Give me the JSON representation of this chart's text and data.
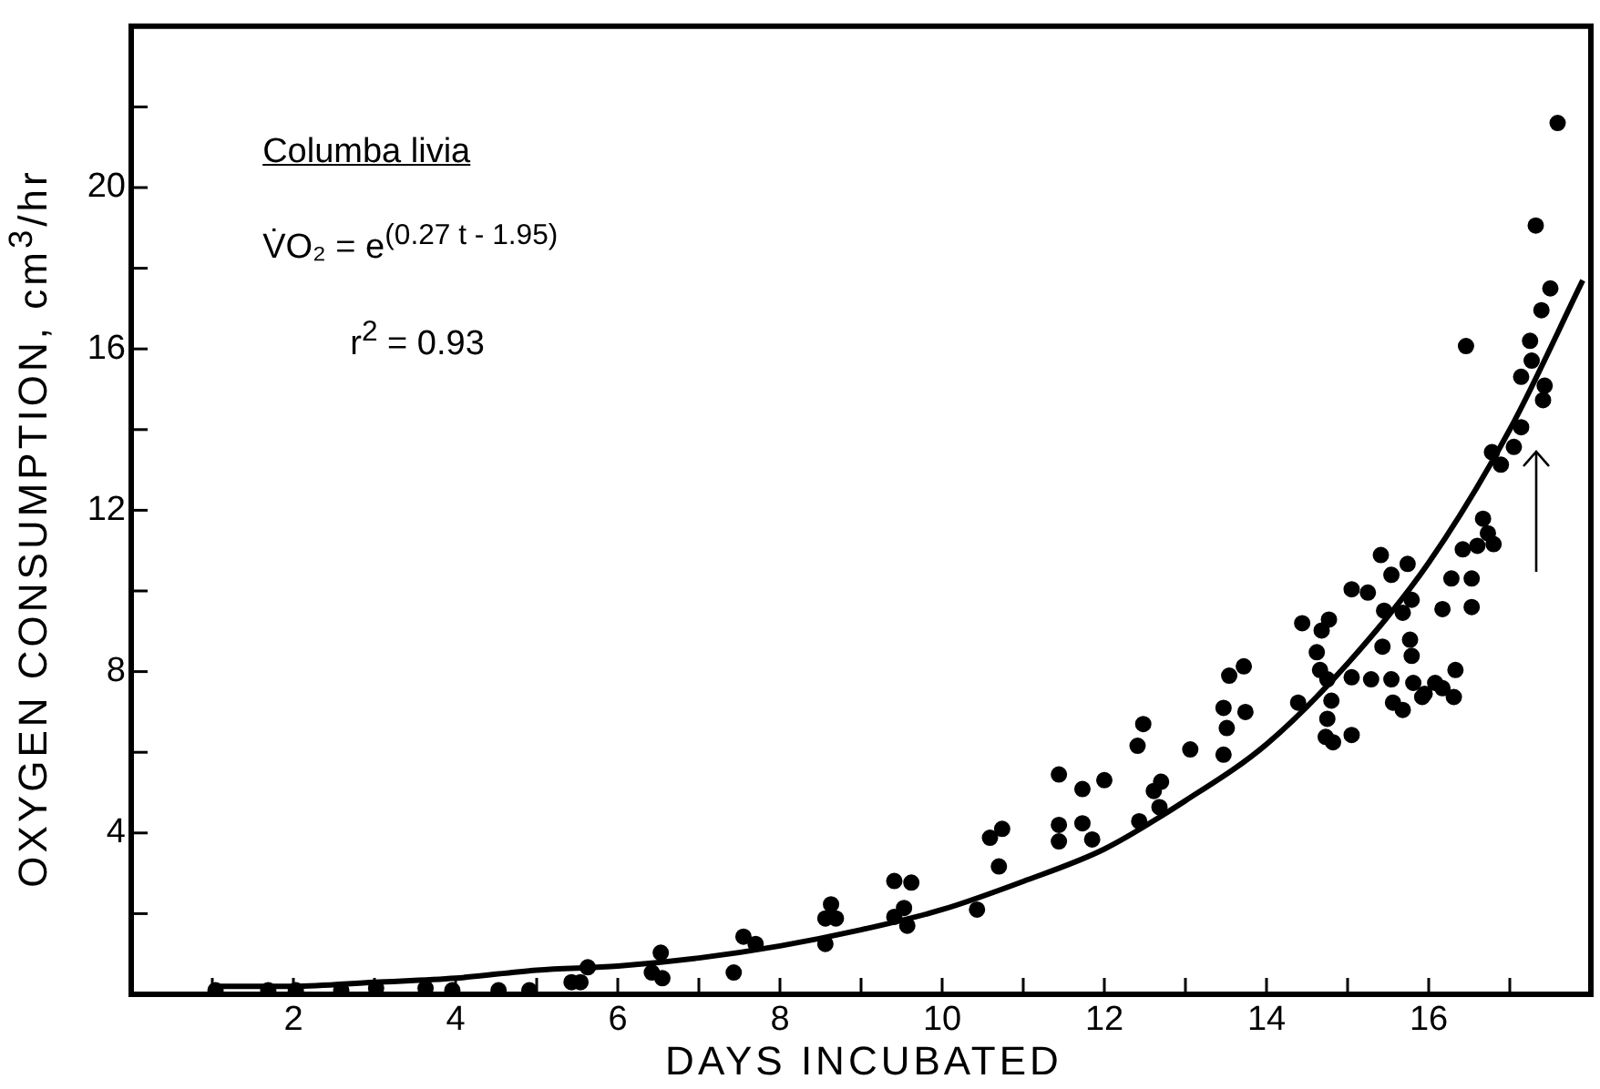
{
  "chart_data": {
    "type": "scatter",
    "xlabel": "DAYS  INCUBATED",
    "ylabel": "OXYGEN  CONSUMPTION, cm$^{3}$/hr",
    "annotations": [
      "Columba  livia",
      "V̇O₂ = e$^{(0.27 t - 1.95)}$",
      "r$^{2}$ = 0.93"
    ],
    "xlim": [
      0,
      18
    ],
    "ylim": [
      0,
      24
    ],
    "xticks": [
      {
        "value": 1,
        "label": null
      },
      2,
      {
        "value": 3,
        "label": null
      },
      4,
      {
        "value": 5,
        "label": null
      },
      6,
      {
        "value": 7,
        "label": null
      },
      8,
      {
        "value": 9,
        "label": null
      },
      10,
      {
        "value": 11,
        "label": null
      },
      12,
      {
        "value": 13,
        "label": null
      },
      14,
      {
        "value": 15,
        "label": null
      },
      16,
      {
        "value": 17,
        "label": null
      }
    ],
    "yticks": [
      {
        "value": 2,
        "label": null
      },
      4,
      {
        "value": 6,
        "label": null
      },
      8,
      {
        "value": 10,
        "label": null
      },
      12,
      {
        "value": 14,
        "label": null
      },
      16,
      {
        "value": 18,
        "label": null
      },
      20,
      {
        "value": 22,
        "label": null
      }
    ],
    "grid": false,
    "legend": false,
    "series": [
      {
        "marker": "circle",
        "color": "#000000",
        "x": [
          1.04,
          1.69,
          2.03,
          2.59,
          3.02,
          3.63,
          3.96,
          4.53,
          4.91,
          5.43,
          5.54,
          5.63,
          6.53,
          6.42,
          6.55,
          7.55,
          7.7,
          7.43,
          8.63,
          8.56,
          8.69,
          8.56,
          9.41,
          9.62,
          9.41,
          9.53,
          9.57,
          10.43,
          10.59,
          10.74,
          10.7,
          11.44,
          11.44,
          11.44,
          11.73,
          11.73,
          11.85,
          12.0,
          12.48,
          12.41,
          12.61,
          12.7,
          12.43,
          12.68,
          13.06,
          13.54,
          13.72,
          13.47,
          13.74,
          13.51,
          13.47,
          14.39,
          14.44,
          14.68,
          14.77,
          14.62,
          14.66,
          14.75,
          14.8,
          14.75,
          14.73,
          14.82,
          15.05,
          15.05,
          15.05,
          15.25,
          17.59,
          17.32,
          17.5,
          17.39,
          17.25,
          17.27,
          17.14,
          17.43,
          17.41,
          17.14,
          17.05,
          16.78,
          16.89,
          16.46,
          16.67,
          16.73,
          16.8,
          16.6,
          16.42,
          16.28,
          16.53,
          16.17,
          16.53,
          15.41,
          15.74,
          15.54,
          15.79,
          15.68,
          15.45,
          15.43,
          15.77,
          15.79,
          15.29,
          15.54,
          15.81,
          15.95,
          16.08,
          16.17,
          16.33,
          16.31,
          15.56,
          15.68,
          15.92
        ],
        "values": [
          0.1,
          0.1,
          0.1,
          0.1,
          0.15,
          0.15,
          0.1,
          0.1,
          0.1,
          0.3,
          0.3,
          0.67,
          1.03,
          0.54,
          0.4,
          1.43,
          1.25,
          0.54,
          2.23,
          1.88,
          1.88,
          1.25,
          2.81,
          2.77,
          1.92,
          2.14,
          1.7,
          2.1,
          3.88,
          4.1,
          3.17,
          5.45,
          4.2,
          3.79,
          5.09,
          4.24,
          3.84,
          5.31,
          6.7,
          6.16,
          5.04,
          5.27,
          4.29,
          4.64,
          6.07,
          7.9,
          8.13,
          7.1,
          7.0,
          6.6,
          5.94,
          7.23,
          9.2,
          9.02,
          9.29,
          8.48,
          8.04,
          7.81,
          7.28,
          6.83,
          6.38,
          6.25,
          6.43,
          7.86,
          10.04,
          9.96,
          21.6,
          19.06,
          17.5,
          16.96,
          16.2,
          15.71,
          15.31,
          15.09,
          14.73,
          14.06,
          13.57,
          13.44,
          13.13,
          16.07,
          11.79,
          11.43,
          11.16,
          11.12,
          11.03,
          10.31,
          10.31,
          9.55,
          9.6,
          10.89,
          10.67,
          10.4,
          9.78,
          9.46,
          9.51,
          8.62,
          8.79,
          8.39,
          7.81,
          7.81,
          7.72,
          7.45,
          7.72,
          7.59,
          8.04,
          7.37,
          7.23,
          7.05,
          7.37
        ]
      },
      {
        "type": "line",
        "marker": "none",
        "color": "#000000",
        "line_style": "solid",
        "x": [
          1,
          2,
          3,
          4,
          5,
          6,
          7,
          8,
          9,
          10,
          11,
          12,
          13,
          14,
          15,
          16,
          17,
          17.9
        ],
        "values": [
          0.2,
          0.2,
          0.3,
          0.4,
          0.6,
          0.7,
          0.9,
          1.2,
          1.6,
          2.1,
          2.8,
          3.6,
          4.8,
          6.2,
          8.2,
          10.7,
          14.0,
          17.7
        ]
      }
    ]
  }
}
